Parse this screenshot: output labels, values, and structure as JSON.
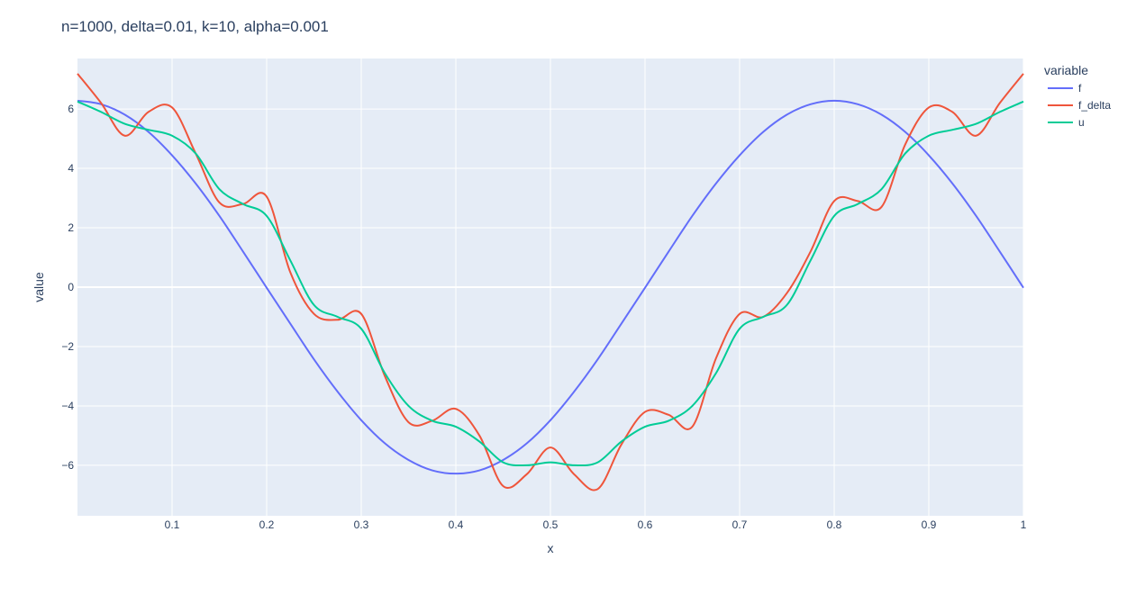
{
  "chart_data": {
    "type": "line",
    "title": "n=1000, delta=0.01, k=10, alpha=0.001",
    "xlabel": "x",
    "ylabel": "value",
    "xlim": [
      0,
      1
    ],
    "ylim": [
      -7.7,
      7.7
    ],
    "x_ticks": [
      0.1,
      0.2,
      0.3,
      0.4,
      0.5,
      0.6,
      0.7,
      0.8,
      0.9,
      1
    ],
    "x_tick_labels": [
      "0.1",
      "0.2",
      "0.3",
      "0.4",
      "0.5",
      "0.6",
      "0.7",
      "0.8",
      "0.9",
      "1"
    ],
    "y_ticks": [
      -6,
      -4,
      -2,
      0,
      2,
      4,
      6
    ],
    "y_tick_labels": [
      "−6",
      "−4",
      "−2",
      "0",
      "2",
      "4",
      "6"
    ],
    "grid": true,
    "legend": {
      "title": "variable",
      "placement": "top-right"
    },
    "plot_background": "#e5ecf6",
    "x": [
      0,
      0.025,
      0.05,
      0.075,
      0.1,
      0.125,
      0.15,
      0.175,
      0.2,
      0.225,
      0.25,
      0.275,
      0.3,
      0.325,
      0.35,
      0.375,
      0.4,
      0.425,
      0.45,
      0.475,
      0.5,
      0.525,
      0.55,
      0.575,
      0.6,
      0.625,
      0.65,
      0.675,
      0.7,
      0.725,
      0.75,
      0.775,
      0.8,
      0.825,
      0.85,
      0.875,
      0.9,
      0.925,
      0.95,
      0.975,
      1
    ],
    "series": [
      {
        "name": "f",
        "color": "#636efa",
        "values": [
          6.28,
          6.16,
          5.81,
          5.23,
          4.44,
          3.49,
          2.4,
          1.2,
          -0.02,
          -1.23,
          -2.43,
          -3.52,
          -4.48,
          -5.26,
          -5.82,
          -6.17,
          -6.28,
          -6.17,
          -5.82,
          -5.26,
          -4.48,
          -3.52,
          -2.43,
          -1.23,
          -0.02,
          1.2,
          2.4,
          3.49,
          4.44,
          5.23,
          5.81,
          6.16,
          6.28,
          6.16,
          5.81,
          5.23,
          4.44,
          3.49,
          2.4,
          1.2,
          -0.02
        ]
      },
      {
        "name": "f_delta",
        "color": "#ef553b",
        "values": [
          7.19,
          6.2,
          5.1,
          5.9,
          6.05,
          4.5,
          2.85,
          2.8,
          3.05,
          0.5,
          -0.9,
          -1.1,
          -0.9,
          -3.0,
          -4.55,
          -4.5,
          -4.1,
          -5.0,
          -6.7,
          -6.3,
          -5.4,
          -6.3,
          -6.8,
          -5.3,
          -4.2,
          -4.3,
          -4.7,
          -2.4,
          -0.9,
          -1.0,
          -0.2,
          1.2,
          2.9,
          2.9,
          2.7,
          4.8,
          6.05,
          5.9,
          5.1,
          6.2,
          7.19
        ]
      },
      {
        "name": "u",
        "color": "#00cc96",
        "values": [
          6.25,
          5.9,
          5.5,
          5.3,
          5.1,
          4.5,
          3.3,
          2.8,
          2.4,
          0.9,
          -0.6,
          -1.0,
          -1.4,
          -2.9,
          -4.0,
          -4.5,
          -4.7,
          -5.2,
          -5.9,
          -6.0,
          -5.9,
          -6.0,
          -5.9,
          -5.2,
          -4.7,
          -4.5,
          -4.0,
          -2.9,
          -1.4,
          -1.0,
          -0.6,
          0.9,
          2.4,
          2.8,
          3.3,
          4.5,
          5.1,
          5.3,
          5.5,
          5.9,
          6.25
        ]
      }
    ]
  }
}
